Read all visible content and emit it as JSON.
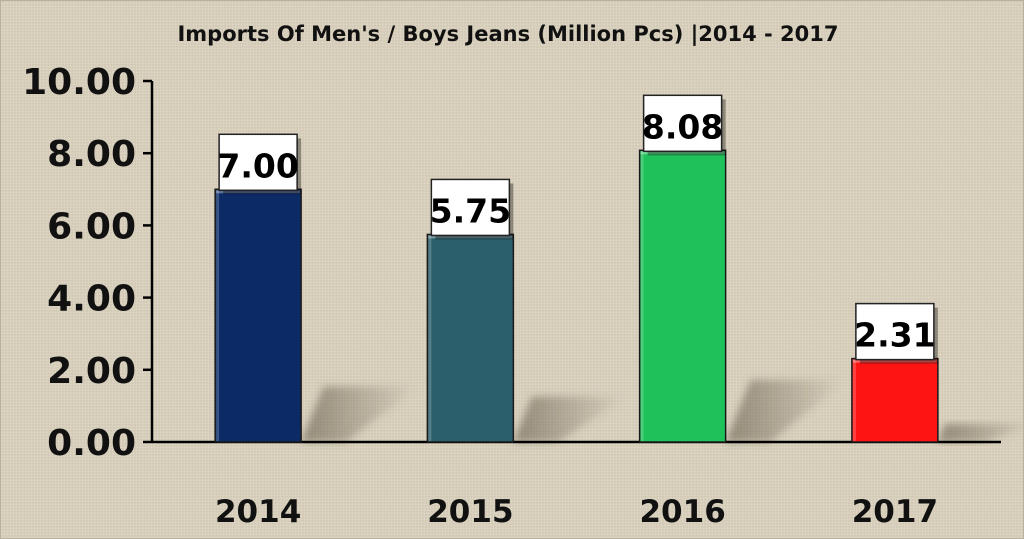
{
  "chart_data": {
    "type": "bar",
    "title": "Imports Of Men's / Boys Jeans (Million Pcs) |2014 - 2017",
    "xlabel": "",
    "ylabel": "",
    "categories": [
      "2014",
      "2015",
      "2016",
      "2017"
    ],
    "values": [
      7.0,
      5.75,
      8.08,
      2.31
    ],
    "value_labels": [
      "7.00",
      "5.75",
      "8.08",
      "2.31"
    ],
    "bar_colors": [
      "#0b2a66",
      "#2a5f6b",
      "#1fc15a",
      "#ff1414"
    ],
    "ylim": [
      0,
      10
    ],
    "yticks": [
      0,
      2,
      4,
      6,
      8,
      10
    ],
    "ytick_labels": [
      "0.00",
      "2.00",
      "4.00",
      "6.00",
      "8.00",
      "10.00"
    ],
    "grid": false,
    "legend": "none",
    "background_color": "#d9d0bb"
  }
}
